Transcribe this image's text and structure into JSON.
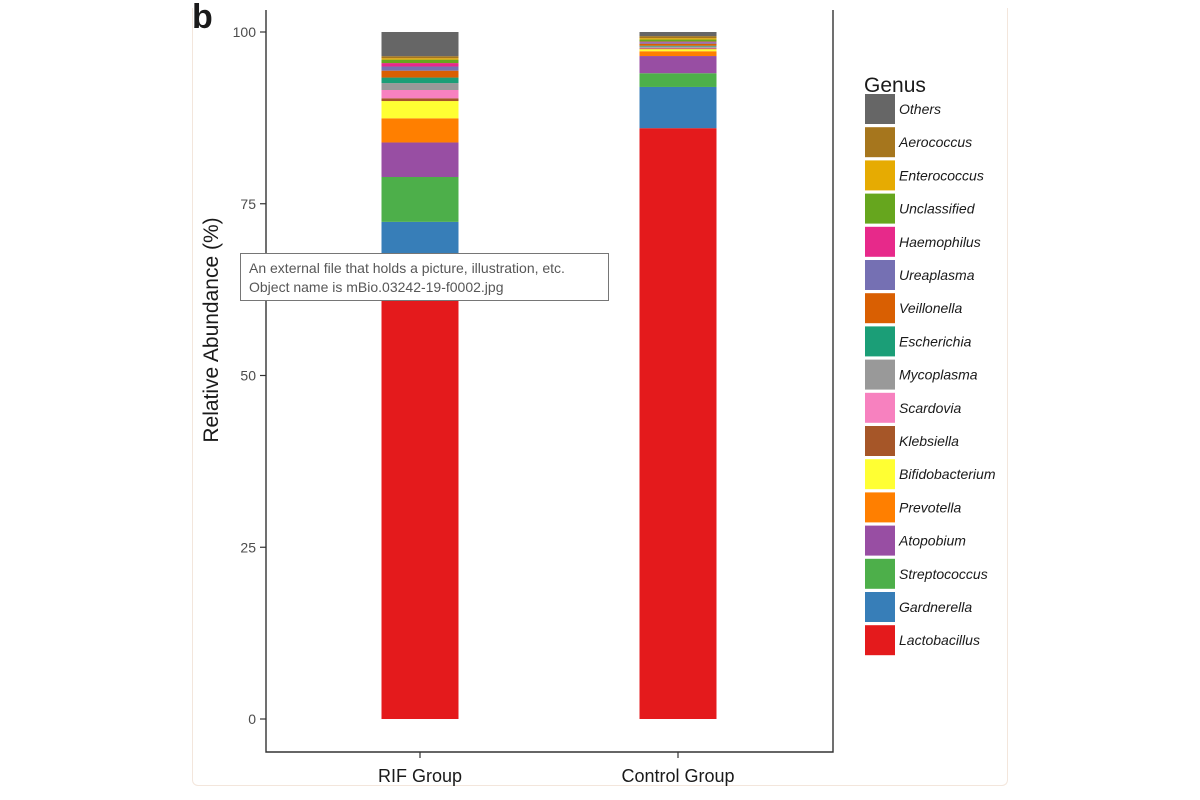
{
  "tooltip": {
    "line1": "An external file that holds a picture, illustration, etc.",
    "line2": "Object name is mBio.03242-19-f0002.jpg"
  },
  "figure": {
    "panel_letter": "b"
  },
  "chart_data": {
    "type": "bar",
    "stacked": true,
    "title": "",
    "xlabel": "",
    "ylabel": "Relative Abundance (%)",
    "ylim": [
      0,
      100
    ],
    "yticks": [
      0,
      25,
      50,
      75,
      100
    ],
    "categories": [
      "RIF Group",
      "Control Group"
    ],
    "legend_title": "Genus",
    "legend_position": "right",
    "grid": false,
    "series": [
      {
        "name": "Lactobacillus",
        "color": "#e41a1c",
        "values": [
          61.5,
          86.0
        ]
      },
      {
        "name": "Gardnerella",
        "color": "#377eb8",
        "values": [
          10.5,
          6.0
        ]
      },
      {
        "name": "Streptococcus",
        "color": "#4daf4a",
        "values": [
          6.5,
          2.0
        ]
      },
      {
        "name": "Atopobium",
        "color": "#984ea3",
        "values": [
          5.0,
          2.5
        ]
      },
      {
        "name": "Prevotella",
        "color": "#ff7f00",
        "values": [
          3.5,
          0.7
        ]
      },
      {
        "name": "Bifidobacterium",
        "color": "#ffff33",
        "values": [
          2.5,
          0.3
        ]
      },
      {
        "name": "Klebsiella",
        "color": "#a65628",
        "values": [
          0.4,
          0.1
        ]
      },
      {
        "name": "Scardovia",
        "color": "#f781bf",
        "values": [
          1.2,
          0.1
        ]
      },
      {
        "name": "Mycoplasma",
        "color": "#999999",
        "values": [
          1.0,
          0.2
        ]
      },
      {
        "name": "Escherichia",
        "color": "#1b9e77",
        "values": [
          0.8,
          0.1
        ]
      },
      {
        "name": "Veillonella",
        "color": "#d95f02",
        "values": [
          1.0,
          0.3
        ]
      },
      {
        "name": "Ureaplasma",
        "color": "#7570b3",
        "values": [
          0.6,
          0.2
        ]
      },
      {
        "name": "Haemophilus",
        "color": "#e7298a",
        "values": [
          0.5,
          0.1
        ]
      },
      {
        "name": "Unclassified",
        "color": "#66a61e",
        "values": [
          0.5,
          0.3
        ]
      },
      {
        "name": "Enterococcus",
        "color": "#e6ab02",
        "values": [
          0.2,
          0.2
        ]
      },
      {
        "name": "Aerococcus",
        "color": "#a6761d",
        "values": [
          0.3,
          0.3
        ]
      },
      {
        "name": "Others",
        "color": "#666666",
        "values": [
          3.5,
          0.6
        ]
      }
    ]
  }
}
